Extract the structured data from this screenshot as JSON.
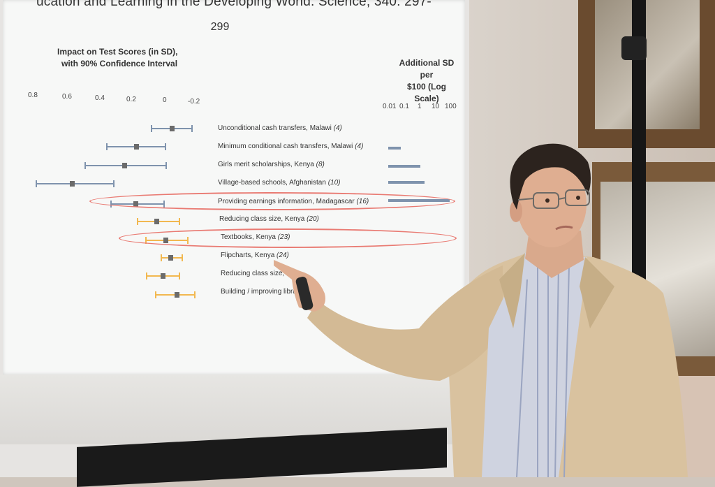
{
  "slide": {
    "reference_line1": "ucation and Learning in the Developing World. Science, 340: 297-",
    "reference_line2": "299",
    "left_axis_title_line1": "Impact on Test Scores (in SD),",
    "left_axis_title_line2": "with 90% Confidence Interval",
    "right_axis_title_line1": "Additional SD per",
    "right_axis_title_line2": "$100 (Log Scale)",
    "left_ticks": [
      "0.8",
      "0.6",
      "0.4",
      "0.2",
      "0",
      "-0.2"
    ],
    "right_ticks": [
      "0.01",
      "0.1",
      "1",
      "10",
      "100"
    ],
    "rows": [
      {
        "label": "Unconditional cash transfers, Malawi",
        "n": "(4)"
      },
      {
        "label": "Minimum conditional cash transfers, Malawi",
        "n": "(4)"
      },
      {
        "label": "Girls merit scholarships, Kenya",
        "n": "(8)"
      },
      {
        "label": "Village-based schools, Afghanistan",
        "n": "(10)"
      },
      {
        "label": "Providing earnings information, Madagascar",
        "n": "(16)"
      },
      {
        "label": "Reducing class size, Kenya",
        "n": "(20)"
      },
      {
        "label": "Textbooks, Kenya",
        "n": "(23)"
      },
      {
        "label": "Flipcharts, Kenya",
        "n": "(24)"
      },
      {
        "label": "Reducing class size, In",
        "n": ""
      },
      {
        "label": "Building / improving libra",
        "n": ""
      }
    ]
  },
  "colors": {
    "ci_blue": "#7f93ad",
    "ci_orange": "#f2b850",
    "highlight": "#e97a72"
  }
}
